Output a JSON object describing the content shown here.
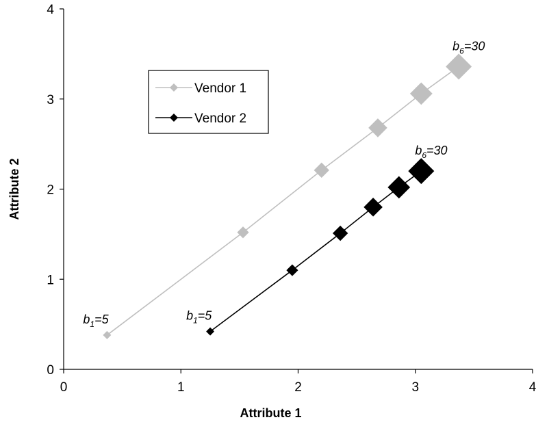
{
  "chart_data": {
    "type": "scatter",
    "title": "",
    "xlabel": "Attribute 1",
    "ylabel": "Attribute 2",
    "xlim": [
      0,
      4
    ],
    "ylim": [
      0,
      4
    ],
    "xticks": [
      0,
      1,
      2,
      3,
      4
    ],
    "yticks": [
      0,
      1,
      2,
      3,
      4
    ],
    "grid": false,
    "legend_placement": "upper-left",
    "series": [
      {
        "name": "Vendor 1",
        "color": "#bfbfbf",
        "marker": "diamond",
        "x": [
          0.37,
          1.53,
          2.2,
          2.68,
          3.05,
          3.37
        ],
        "y": [
          0.38,
          1.52,
          2.21,
          2.68,
          3.06,
          3.36
        ],
        "marker_sizes": [
          1,
          2,
          3,
          4,
          5,
          6
        ]
      },
      {
        "name": "Vendor 2",
        "color": "#000000",
        "marker": "diamond",
        "x": [
          1.25,
          1.95,
          2.36,
          2.64,
          2.86,
          3.05
        ],
        "y": [
          0.42,
          1.1,
          1.51,
          1.8,
          2.02,
          2.2
        ],
        "marker_sizes": [
          1,
          2,
          3,
          4,
          5,
          6
        ]
      }
    ],
    "annotations": [
      {
        "series": 0,
        "point": 0,
        "base": "b",
        "sub": "1",
        "rest": "=5",
        "anchor": "above-left"
      },
      {
        "series": 0,
        "point": 5,
        "base": "b",
        "sub": "6",
        "rest": "=30",
        "anchor": "above"
      },
      {
        "series": 1,
        "point": 0,
        "base": "b",
        "sub": "1",
        "rest": "=5",
        "anchor": "above-left"
      },
      {
        "series": 1,
        "point": 5,
        "base": "b",
        "sub": "6",
        "rest": "=30",
        "anchor": "above"
      }
    ]
  }
}
